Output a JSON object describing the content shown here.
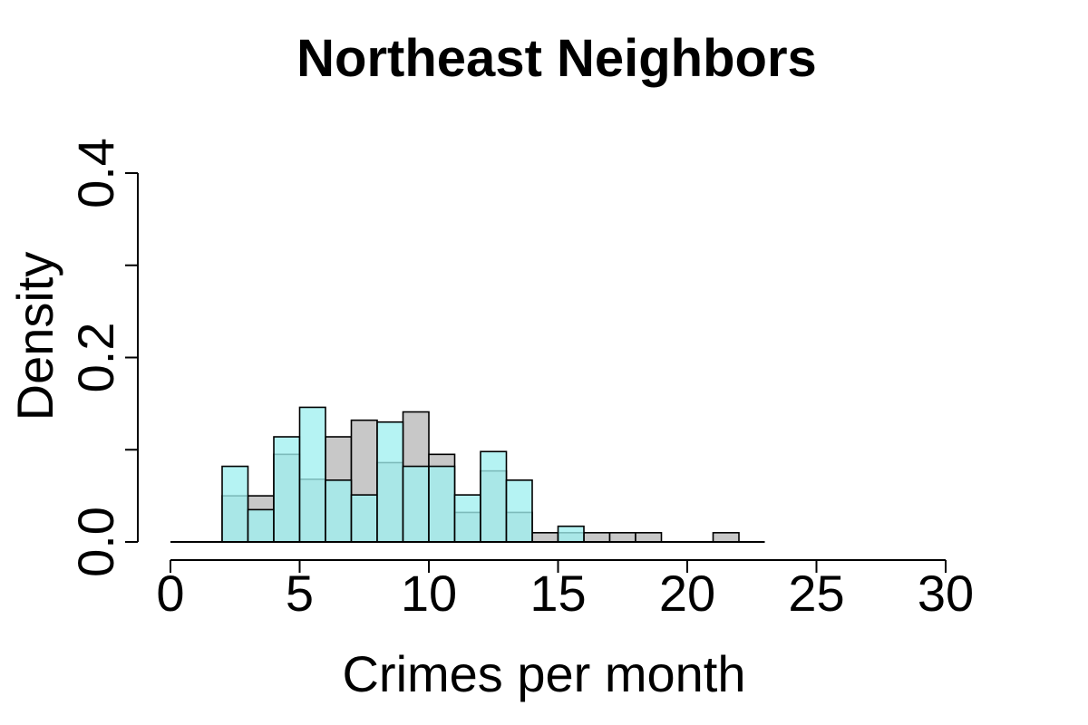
{
  "chart_data": {
    "type": "bar",
    "title": "Northeast Neighbors",
    "xlabel": "Crimes per month",
    "ylabel": "Density",
    "xlim": [
      0,
      30
    ],
    "ylim": [
      0,
      0.4
    ],
    "x_ticks": [
      0,
      5,
      10,
      15,
      20,
      25,
      30
    ],
    "x_tick_labels": [
      "0",
      "5",
      "10",
      "15",
      "20",
      "25",
      "30"
    ],
    "y_ticks": [
      0,
      0.1,
      0.2,
      0.3,
      0.4
    ],
    "y_tick_labels": [
      "0.0",
      "",
      "0.2",
      "",
      "0.4"
    ],
    "bin_width": 1,
    "grid": false,
    "series": [
      {
        "color": "#c8c8c8",
        "bin_starts": [
          0,
          1,
          2,
          3,
          4,
          5,
          6,
          7,
          8,
          9,
          10,
          11,
          12,
          13,
          14,
          15,
          16,
          17,
          18,
          19,
          20,
          21,
          22
        ],
        "values": [
          0,
          0,
          0.05,
          0.05,
          0.095,
          0.068,
          0.114,
          0.132,
          0.086,
          0.141,
          0.095,
          0.032,
          0.077,
          0.032,
          0.01,
          0.01,
          0.01,
          0.01,
          0.01,
          0,
          0,
          0.01,
          0
        ]
      },
      {
        "color": "#a0f0ef",
        "bin_starts": [
          0,
          1,
          2,
          3,
          4,
          5,
          6,
          7,
          8,
          9,
          10,
          11,
          12,
          13,
          14,
          15,
          16,
          17,
          18,
          19,
          20,
          21,
          22
        ],
        "values": [
          0,
          0,
          0.082,
          0.035,
          0.114,
          0.146,
          0.067,
          0.051,
          0.13,
          0.082,
          0.082,
          0.051,
          0.098,
          0.067,
          0,
          0.017,
          0,
          0,
          0,
          0,
          0,
          0,
          0
        ]
      }
    ]
  }
}
